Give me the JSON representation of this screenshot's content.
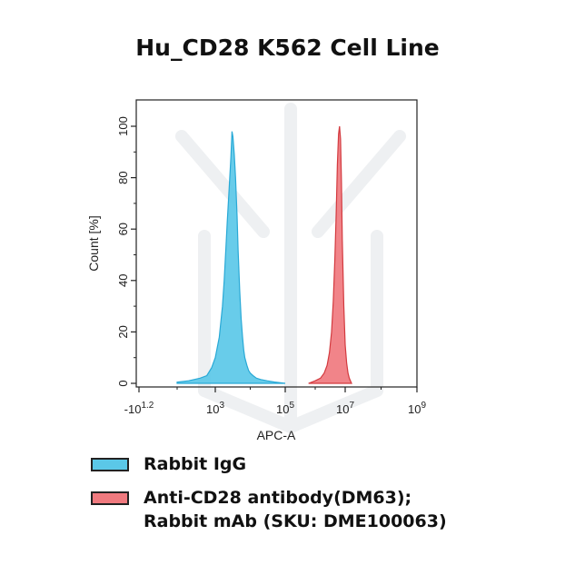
{
  "chart_data": {
    "type": "area",
    "title": "Hu_CD28 K562 Cell Line",
    "xlabel": "APC-A",
    "ylabel": "Count [%]",
    "x_scale": "log",
    "xlim": [
      -10,
      1000000000
    ],
    "ylim": [
      0,
      100
    ],
    "x_ticks": [
      {
        "base": "-10",
        "exp": "1.2",
        "value": -10
      },
      {
        "base": "10",
        "exp": "3",
        "value": 1000
      },
      {
        "base": "10",
        "exp": "5",
        "value": 100000
      },
      {
        "base": "10",
        "exp": "7",
        "value": 10000000
      },
      {
        "base": "10",
        "exp": "9",
        "value": 1000000000
      }
    ],
    "y_ticks": [
      "0",
      "20",
      "40",
      "60",
      "80",
      "100"
    ],
    "grid": false,
    "legend_position": "below",
    "series": [
      {
        "name": "Rabbit IgG",
        "color": "#5bc8e8",
        "line_color": "#29a9d6",
        "x": [
          100,
          200,
          400,
          600,
          800,
          1000,
          1300,
          1600,
          1800,
          2000,
          2200,
          2500,
          2800,
          3000,
          3200,
          3500,
          3800,
          4200,
          4500,
          5000,
          5500,
          6000,
          6500,
          7000,
          8000,
          9000,
          10000,
          12000,
          15000,
          20000,
          30000,
          50000,
          100000
        ],
        "y": [
          0.5,
          1,
          2,
          3,
          6,
          10,
          18,
          30,
          40,
          52,
          63,
          76,
          88,
          98,
          96,
          89,
          80,
          65,
          52,
          36,
          25,
          18,
          13,
          10,
          7,
          5,
          4,
          3,
          2,
          1.5,
          1,
          0.5,
          0
        ]
      },
      {
        "name": "Anti-CD28 antibody(DM63); Rabbit mAb (SKU: DME100063)",
        "color": "#f07a7f",
        "line_color": "#d33a3f",
        "x": [
          600000,
          1000000,
          1500000,
          2000000,
          2500000,
          3000000,
          3500000,
          4000000,
          4500000,
          5000000,
          5500000,
          6000000,
          6500000,
          7000000,
          7500000,
          8000000,
          9000000,
          10000000,
          11000000,
          12000000,
          13000000,
          15000000
        ],
        "y": [
          0,
          1,
          2,
          4,
          7,
          12,
          20,
          32,
          48,
          66,
          85,
          97,
          100,
          95,
          78,
          56,
          30,
          15,
          8,
          4,
          2,
          0
        ]
      }
    ]
  },
  "legend": [
    {
      "lines": [
        "Rabbit IgG"
      ],
      "color": "#5bc8e8"
    },
    {
      "lines": [
        "Anti-CD28 antibody(DM63);",
        "Rabbit mAb (SKU: DME100063)"
      ],
      "color": "#f07a7f"
    }
  ]
}
